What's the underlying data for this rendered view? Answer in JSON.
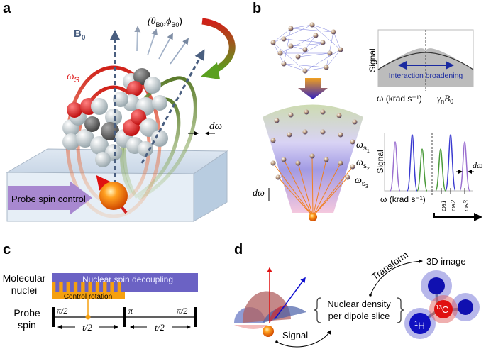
{
  "panels": {
    "a": {
      "label": "a",
      "b0": "B",
      "b0_sub": "0",
      "angles": "(θ",
      "angles_sub1": "B0",
      "angles_mid": ",ϕ",
      "angles_sub2": "B0",
      "angles_end": ")",
      "omega_s": "ω",
      "omega_s_sub": "S",
      "d_omega": "dω",
      "probe_control": "Probe spin control"
    },
    "b": {
      "label": "b",
      "shell_labels": [
        {
          "main": "ω",
          "sub": "s",
          "subsub": "1"
        },
        {
          "main": "ω",
          "sub": "s",
          "subsub": "2"
        },
        {
          "main": "ω",
          "sub": "s",
          "subsub": "3"
        }
      ],
      "d_omega": "dω",
      "top_plot": {
        "ylabel": "Signal",
        "xlabel_left": "ω (krad s⁻¹)",
        "xlabel_right_main": "γ",
        "xlabel_right_sub": "n",
        "xlabel_right_b": "B",
        "xlabel_right_b_sub": "0",
        "annotation": "Interaction broadening"
      },
      "bottom_plot": {
        "ylabel": "Signal",
        "xlabel": "ω (krad s⁻¹)",
        "d_omega": "dω",
        "peak_labels": [
          "ωs1",
          "ωs2",
          "ωs3"
        ]
      }
    },
    "c": {
      "label": "c",
      "row1_label_line1": "Molecular",
      "row1_label_line2": "nuclei",
      "decoupling": "Nuclear spin decoupling",
      "control": "Control rotation",
      "row2_label_line1": "Probe",
      "row2_label_line2": "spin",
      "pulses": [
        "π/2",
        "π",
        "π/2"
      ],
      "intervals": [
        "t/2",
        "t/2"
      ]
    },
    "d": {
      "label": "d",
      "density_line1": "Nuclear density",
      "density_line2": "per dipole slice",
      "signal": "Signal",
      "transform": "Transform",
      "image": "3D image",
      "h_label": "H",
      "h_sup": "1",
      "c_label": "C",
      "c_sup": "13"
    }
  },
  "colors": {
    "b0_arrow": "#4a5f80",
    "red_ring": "#c0201a",
    "green_ring": "#5a7a2a",
    "purple": "#9b7fc8",
    "decoupling": "#6b62c4",
    "control": "#f5a00f",
    "probe": "#f07010",
    "blue_arrow": "#1a2aa0"
  }
}
